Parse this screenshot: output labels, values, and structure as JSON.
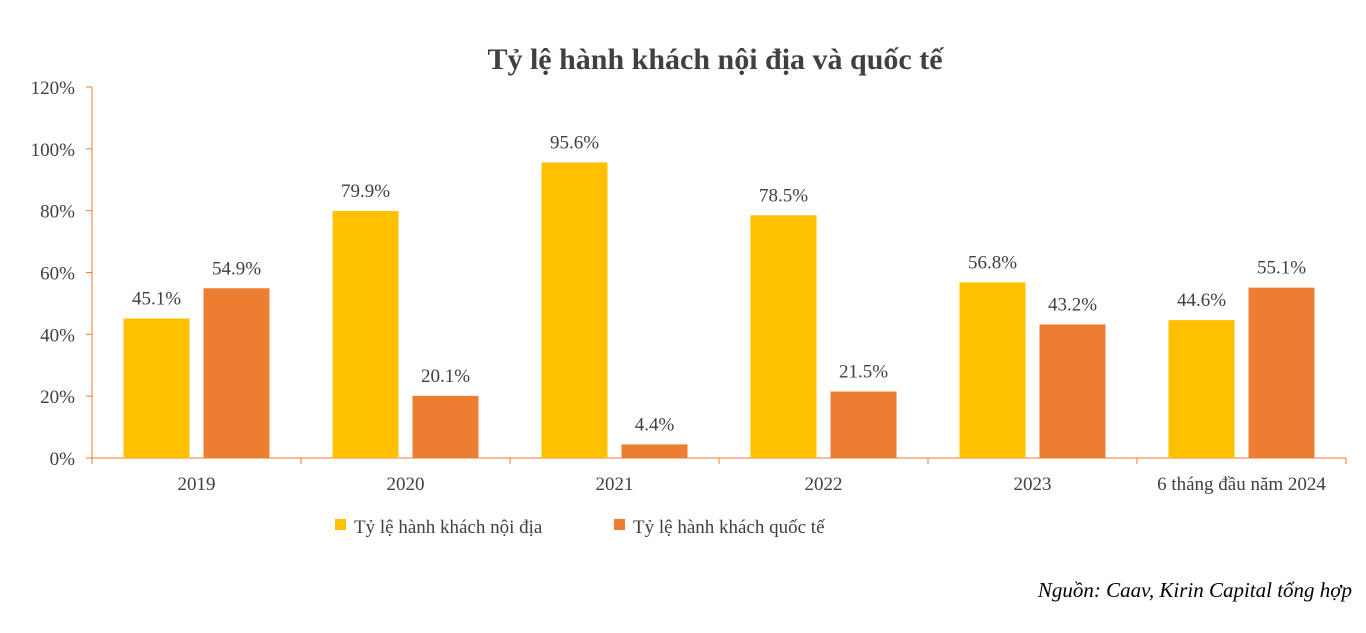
{
  "chart_data": {
    "type": "bar",
    "title": "Tỷ lệ hành khách nội địa và quốc tế",
    "categories": [
      "2019",
      "2020",
      "2021",
      "2022",
      "2023",
      "6 tháng đầu năm 2024"
    ],
    "series": [
      {
        "name": "Tỷ lệ hành khách nội địa",
        "color": "#FFC000",
        "values": [
          45.1,
          79.9,
          95.6,
          78.5,
          56.8,
          44.6
        ],
        "labels": [
          "45.1%",
          "79.9%",
          "95.6%",
          "78.5%",
          "56.8%",
          "44.6%"
        ]
      },
      {
        "name": "Tỷ lệ hành khách quốc tế",
        "color": "#ED7D31",
        "values": [
          54.9,
          20.1,
          4.4,
          21.5,
          43.2,
          55.1
        ],
        "labels": [
          "54.9%",
          "20.1%",
          "4.4%",
          "21.5%",
          "43.2%",
          "55.1%"
        ]
      }
    ],
    "ylim": [
      0,
      120
    ],
    "yticks": [
      0,
      20,
      40,
      60,
      80,
      100,
      120
    ],
    "ytick_labels": [
      "0%",
      "20%",
      "40%",
      "60%",
      "80%",
      "100%",
      "120%"
    ],
    "xlabel": "",
    "ylabel": "",
    "legend_position": "bottom-center",
    "grid": false
  },
  "source_note": "Nguồn: Caav, Kirin Capital tổng hợp",
  "colors": {
    "axis": "#ED7D31",
    "text": "#404040"
  }
}
